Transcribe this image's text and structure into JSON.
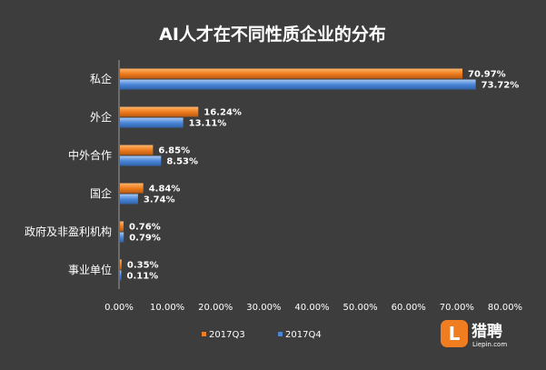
{
  "chart_data": {
    "type": "bar",
    "orientation": "horizontal",
    "title": "AI人才在不同性质企业的分布",
    "categories": [
      "私企",
      "外企",
      "中外合作",
      "国企",
      "政府及非盈利机构",
      "事业单位"
    ],
    "series": [
      {
        "name": "2017Q3",
        "values": [
          70.97,
          16.24,
          6.85,
          4.84,
          0.76,
          0.35
        ],
        "color": "#f07d1f"
      },
      {
        "name": "2017Q4",
        "values": [
          73.72,
          13.11,
          8.53,
          3.74,
          0.79,
          0.11
        ],
        "color": "#4a86d8"
      }
    ],
    "data_labels": [
      [
        "70.97%",
        "16.24%",
        "6.85%",
        "4.84%",
        "0.76%",
        "0.35%"
      ],
      [
        "73.72%",
        "13.11%",
        "8.53%",
        "3.74%",
        "0.79%",
        "0.11%"
      ]
    ],
    "xlim": [
      0,
      80
    ],
    "x_ticks": [
      "0.00%",
      "10.00%",
      "20.00%",
      "30.00%",
      "40.00%",
      "50.00%",
      "60.00%",
      "70.00%",
      "80.00%"
    ],
    "legend_position": "bottom",
    "grid": false
  },
  "logo": {
    "mark": "L",
    "name": "猎聘",
    "sub": "Liepin.com"
  },
  "colors": {
    "background": "#3d3d3d",
    "q3": "#f07d1f",
    "q4": "#4a86d8"
  }
}
